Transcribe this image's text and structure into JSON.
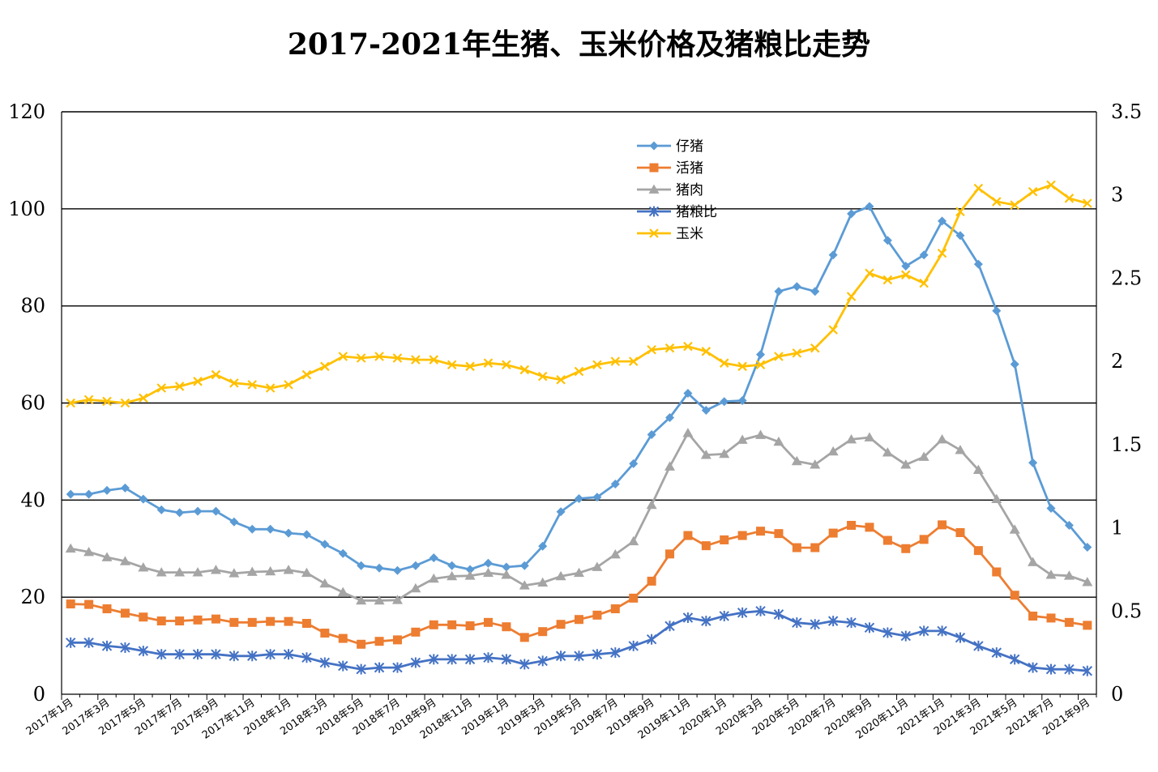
{
  "chart_data": {
    "type": "line",
    "title": "2017-2021年生猪、玉米价格及猪粮比走势",
    "y_left": {
      "min": 0,
      "max": 120,
      "ticks": [
        "0",
        "20",
        "40",
        "60",
        "80",
        "100",
        "120"
      ]
    },
    "y_right": {
      "min": 0,
      "max": 3.5,
      "ticks": [
        "0",
        "0.5",
        "1",
        "1.5",
        "2",
        "2.5",
        "3",
        "3.5"
      ]
    },
    "x_tick_labels": [
      "2017年1月",
      "2017年3月",
      "2017年5月",
      "2017年7月",
      "2017年9月",
      "2017年11月",
      "2018年1月",
      "2018年3月",
      "2018年5月",
      "2018年7月",
      "2018年9月",
      "2018年11月",
      "2019年1月",
      "2019年3月",
      "2019年5月",
      "2019年7月",
      "2019年9月",
      "2019年11月",
      "2020年1月",
      "2020年3月",
      "2020年5月",
      "2020年7月",
      "2020年9月",
      "2020年11月",
      "2021年1月",
      "2021年3月",
      "2021年5月",
      "2021年7月",
      "2021年9月"
    ],
    "grid": true,
    "legend_position": "top-center",
    "series": [
      {
        "name": "仔猪",
        "color": "#5b9bd5",
        "marker": "diamond",
        "axis": "left",
        "values": [
          41.2,
          41.2,
          42,
          42.5,
          40.2,
          38,
          37.4,
          37.7,
          37.7,
          35.5,
          34,
          34,
          33.2,
          32.9,
          30.9,
          29,
          26.5,
          26,
          25.5,
          26.5,
          28.1,
          26.5,
          25.7,
          27,
          26.2,
          26.5,
          30.5,
          37.6,
          40.3,
          40.6,
          43.3,
          47.5,
          53.5,
          57,
          62,
          58.5,
          60.3,
          60.5,
          70,
          83,
          84,
          83,
          90.5,
          99,
          100.5,
          93.5,
          88.2,
          90.5,
          97.5,
          94.5,
          88.6,
          79,
          68,
          47.7,
          38.3,
          34.8,
          30.3
        ]
      },
      {
        "name": "活猪",
        "color": "#ed7d31",
        "marker": "square",
        "axis": "left",
        "values": [
          18.6,
          18.5,
          17.6,
          16.7,
          15.9,
          15.1,
          15.1,
          15.3,
          15.5,
          14.8,
          14.8,
          15,
          15,
          14.6,
          12.6,
          11.5,
          10.3,
          10.9,
          11.2,
          12.8,
          14.3,
          14.3,
          14.1,
          14.8,
          13.9,
          11.7,
          12.9,
          14.4,
          15.4,
          16.3,
          17.6,
          19.8,
          23.3,
          28.9,
          32.7,
          30.6,
          31.8,
          32.7,
          33.6,
          33.1,
          30.2,
          30.2,
          33.2,
          34.8,
          34.4,
          31.7,
          30,
          31.9,
          34.9,
          33.3,
          29.6,
          25.2,
          20.4,
          16.1,
          15.7,
          14.8,
          14.2
        ]
      },
      {
        "name": "猪肉",
        "color": "#a5a5a5",
        "marker": "triangle",
        "axis": "left",
        "values": [
          30,
          29.3,
          28.2,
          27.4,
          26.1,
          25.1,
          25.1,
          25.1,
          25.6,
          24.9,
          25.2,
          25.3,
          25.6,
          25,
          22.8,
          21,
          19.3,
          19.3,
          19.4,
          21.8,
          23.8,
          24.3,
          24.4,
          25,
          24.6,
          22.4,
          23,
          24.3,
          25,
          26.2,
          28.8,
          31.5,
          39,
          46.9,
          53.8,
          49.3,
          49.5,
          52.4,
          53.4,
          52,
          48,
          47.3,
          50,
          52.5,
          52.9,
          49.8,
          47.3,
          48.9,
          52.5,
          50.3,
          46.2,
          40.2,
          33.9,
          27.2,
          24.6,
          24.4,
          23.1
        ]
      },
      {
        "name": "猪粮比",
        "color": "#4472c4",
        "marker": "star",
        "axis": "right",
        "values": [
          0.31,
          0.31,
          0.29,
          0.28,
          0.26,
          0.24,
          0.24,
          0.24,
          0.24,
          0.23,
          0.23,
          0.24,
          0.24,
          0.22,
          0.19,
          0.17,
          0.15,
          0.16,
          0.16,
          0.19,
          0.21,
          0.21,
          0.21,
          0.22,
          0.21,
          0.18,
          0.2,
          0.23,
          0.23,
          0.24,
          0.25,
          0.29,
          0.33,
          0.41,
          0.46,
          0.44,
          0.47,
          0.49,
          0.5,
          0.48,
          0.43,
          0.42,
          0.44,
          0.43,
          0.4,
          0.37,
          0.35,
          0.38,
          0.38,
          0.34,
          0.29,
          0.25,
          0.21,
          0.16,
          0.15,
          0.15,
          0.14
        ]
      },
      {
        "name": "玉米",
        "color": "#ffc000",
        "marker": "x",
        "axis": "right",
        "values": [
          1.75,
          1.77,
          1.76,
          1.75,
          1.78,
          1.84,
          1.85,
          1.88,
          1.92,
          1.87,
          1.86,
          1.84,
          1.86,
          1.92,
          1.97,
          2.03,
          2.02,
          2.03,
          2.02,
          2.01,
          2.01,
          1.98,
          1.97,
          1.99,
          1.98,
          1.95,
          1.91,
          1.89,
          1.94,
          1.98,
          2,
          2,
          2.07,
          2.08,
          2.09,
          2.06,
          1.99,
          1.97,
          1.98,
          2.03,
          2.05,
          2.08,
          2.19,
          2.39,
          2.53,
          2.49,
          2.52,
          2.47,
          2.65,
          2.9,
          3.04,
          2.96,
          2.94,
          3.02,
          3.06,
          2.98,
          2.95
        ]
      }
    ]
  }
}
